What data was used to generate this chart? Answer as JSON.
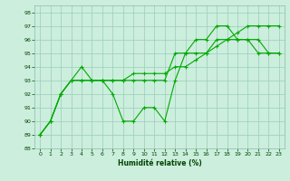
{
  "xlabel": "Humidité relative (%)",
  "background_color": "#cceedd",
  "grid_color": "#99ccbb",
  "line_color": "#00aa00",
  "marker": "+",
  "xlim": [
    -0.5,
    23.5
  ],
  "ylim": [
    88,
    98.5
  ],
  "yticks": [
    88,
    89,
    90,
    91,
    92,
    93,
    94,
    95,
    96,
    97,
    98
  ],
  "xticks": [
    0,
    1,
    2,
    3,
    4,
    5,
    6,
    7,
    8,
    9,
    10,
    11,
    12,
    13,
    14,
    15,
    16,
    17,
    18,
    19,
    20,
    21,
    22,
    23
  ],
  "series": [
    [
      89,
      90,
      92,
      93,
      94,
      93,
      93,
      92,
      90,
      90,
      91,
      91,
      90,
      93,
      95,
      96,
      96,
      97,
      97,
      96,
      96,
      95,
      95,
      95
    ],
    [
      89,
      90,
      92,
      93,
      93,
      93,
      93,
      93,
      93,
      93,
      93,
      93,
      93,
      95,
      95,
      95,
      95,
      96,
      96,
      96,
      96,
      96,
      95,
      95
    ],
    [
      89,
      90,
      92,
      93,
      93,
      93,
      93,
      93,
      93,
      93.5,
      93.5,
      93.5,
      93.5,
      94,
      94,
      94.5,
      95,
      95.5,
      96,
      96.5,
      97,
      97,
      97,
      97
    ]
  ]
}
